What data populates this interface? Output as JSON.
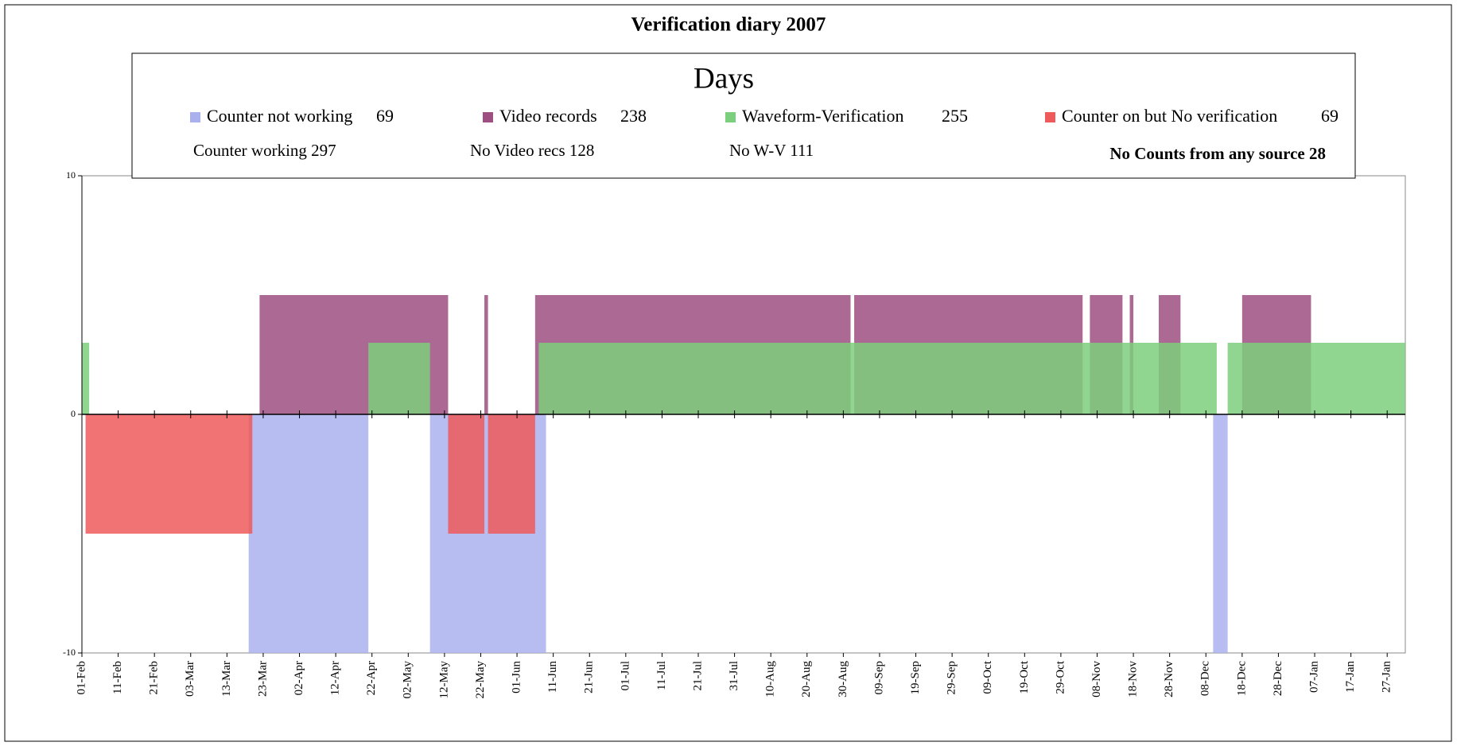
{
  "chart_data": {
    "type": "span",
    "title": "Verification diary 2007",
    "legend_title": "Days",
    "xlim": [
      0,
      365
    ],
    "xticks": [
      {
        "value": 0,
        "label": "01-Feb"
      },
      {
        "value": 10,
        "label": "11-Feb"
      },
      {
        "value": 20,
        "label": "21-Feb"
      },
      {
        "value": 30,
        "label": "03-Mar"
      },
      {
        "value": 40,
        "label": "13-Mar"
      },
      {
        "value": 50,
        "label": "23-Mar"
      },
      {
        "value": 60,
        "label": "02-Apr"
      },
      {
        "value": 70,
        "label": "12-Apr"
      },
      {
        "value": 80,
        "label": "22-Apr"
      },
      {
        "value": 90,
        "label": "02-May"
      },
      {
        "value": 100,
        "label": "12-May"
      },
      {
        "value": 110,
        "label": "22-May"
      },
      {
        "value": 120,
        "label": "01-Jun"
      },
      {
        "value": 130,
        "label": "11-Jun"
      },
      {
        "value": 140,
        "label": "21-Jun"
      },
      {
        "value": 150,
        "label": "01-Jul"
      },
      {
        "value": 160,
        "label": "11-Jul"
      },
      {
        "value": 170,
        "label": "21-Jul"
      },
      {
        "value": 180,
        "label": "31-Jul"
      },
      {
        "value": 190,
        "label": "10-Aug"
      },
      {
        "value": 200,
        "label": "20-Aug"
      },
      {
        "value": 210,
        "label": "30-Aug"
      },
      {
        "value": 220,
        "label": "09-Sep"
      },
      {
        "value": 230,
        "label": "19-Sep"
      },
      {
        "value": 240,
        "label": "29-Sep"
      },
      {
        "value": 250,
        "label": "09-Oct"
      },
      {
        "value": 260,
        "label": "19-Oct"
      },
      {
        "value": 270,
        "label": "29-Oct"
      },
      {
        "value": 280,
        "label": "08-Nov"
      },
      {
        "value": 290,
        "label": "18-Nov"
      },
      {
        "value": 300,
        "label": "28-Nov"
      },
      {
        "value": 310,
        "label": "08-Dec"
      },
      {
        "value": 320,
        "label": "18-Dec"
      },
      {
        "value": 330,
        "label": "28-Dec"
      },
      {
        "value": 340,
        "label": "07-Jan"
      },
      {
        "value": 350,
        "label": "17-Jan"
      },
      {
        "value": 360,
        "label": "27-Jan"
      }
    ],
    "ylim": [
      -10,
      10
    ],
    "yticks": [
      -10,
      0,
      10
    ],
    "series": [
      {
        "name": "Counter not working",
        "total": 69,
        "color": "#aab0ee",
        "value": -10,
        "spans": [
          [
            46,
            79
          ],
          [
            96,
            128
          ],
          [
            312,
            316
          ]
        ]
      },
      {
        "name": "Video records",
        "total": 238,
        "color": "#9c4f80",
        "value": 5,
        "spans": [
          [
            49,
            101
          ],
          [
            111,
            112
          ],
          [
            125,
            212
          ],
          [
            213,
            276
          ],
          [
            278,
            287
          ],
          [
            289,
            290
          ],
          [
            297,
            303
          ],
          [
            320,
            339
          ]
        ]
      },
      {
        "name": "Waveform-Verification",
        "total": 255,
        "color": "#7ccf7c",
        "value": 3,
        "spans": [
          [
            0,
            2
          ],
          [
            79,
            96
          ],
          [
            126,
            313
          ],
          [
            316,
            365
          ]
        ]
      },
      {
        "name": "Counter on but No verification",
        "total": 69,
        "color": "#ef5a5a",
        "value": -5,
        "spans": [
          [
            1,
            47
          ],
          [
            101,
            111
          ],
          [
            112,
            125
          ]
        ]
      }
    ],
    "notes": [
      "Counter working 297",
      "No Video recs 128",
      "No W-V 111",
      "No Counts from any source 28"
    ]
  }
}
